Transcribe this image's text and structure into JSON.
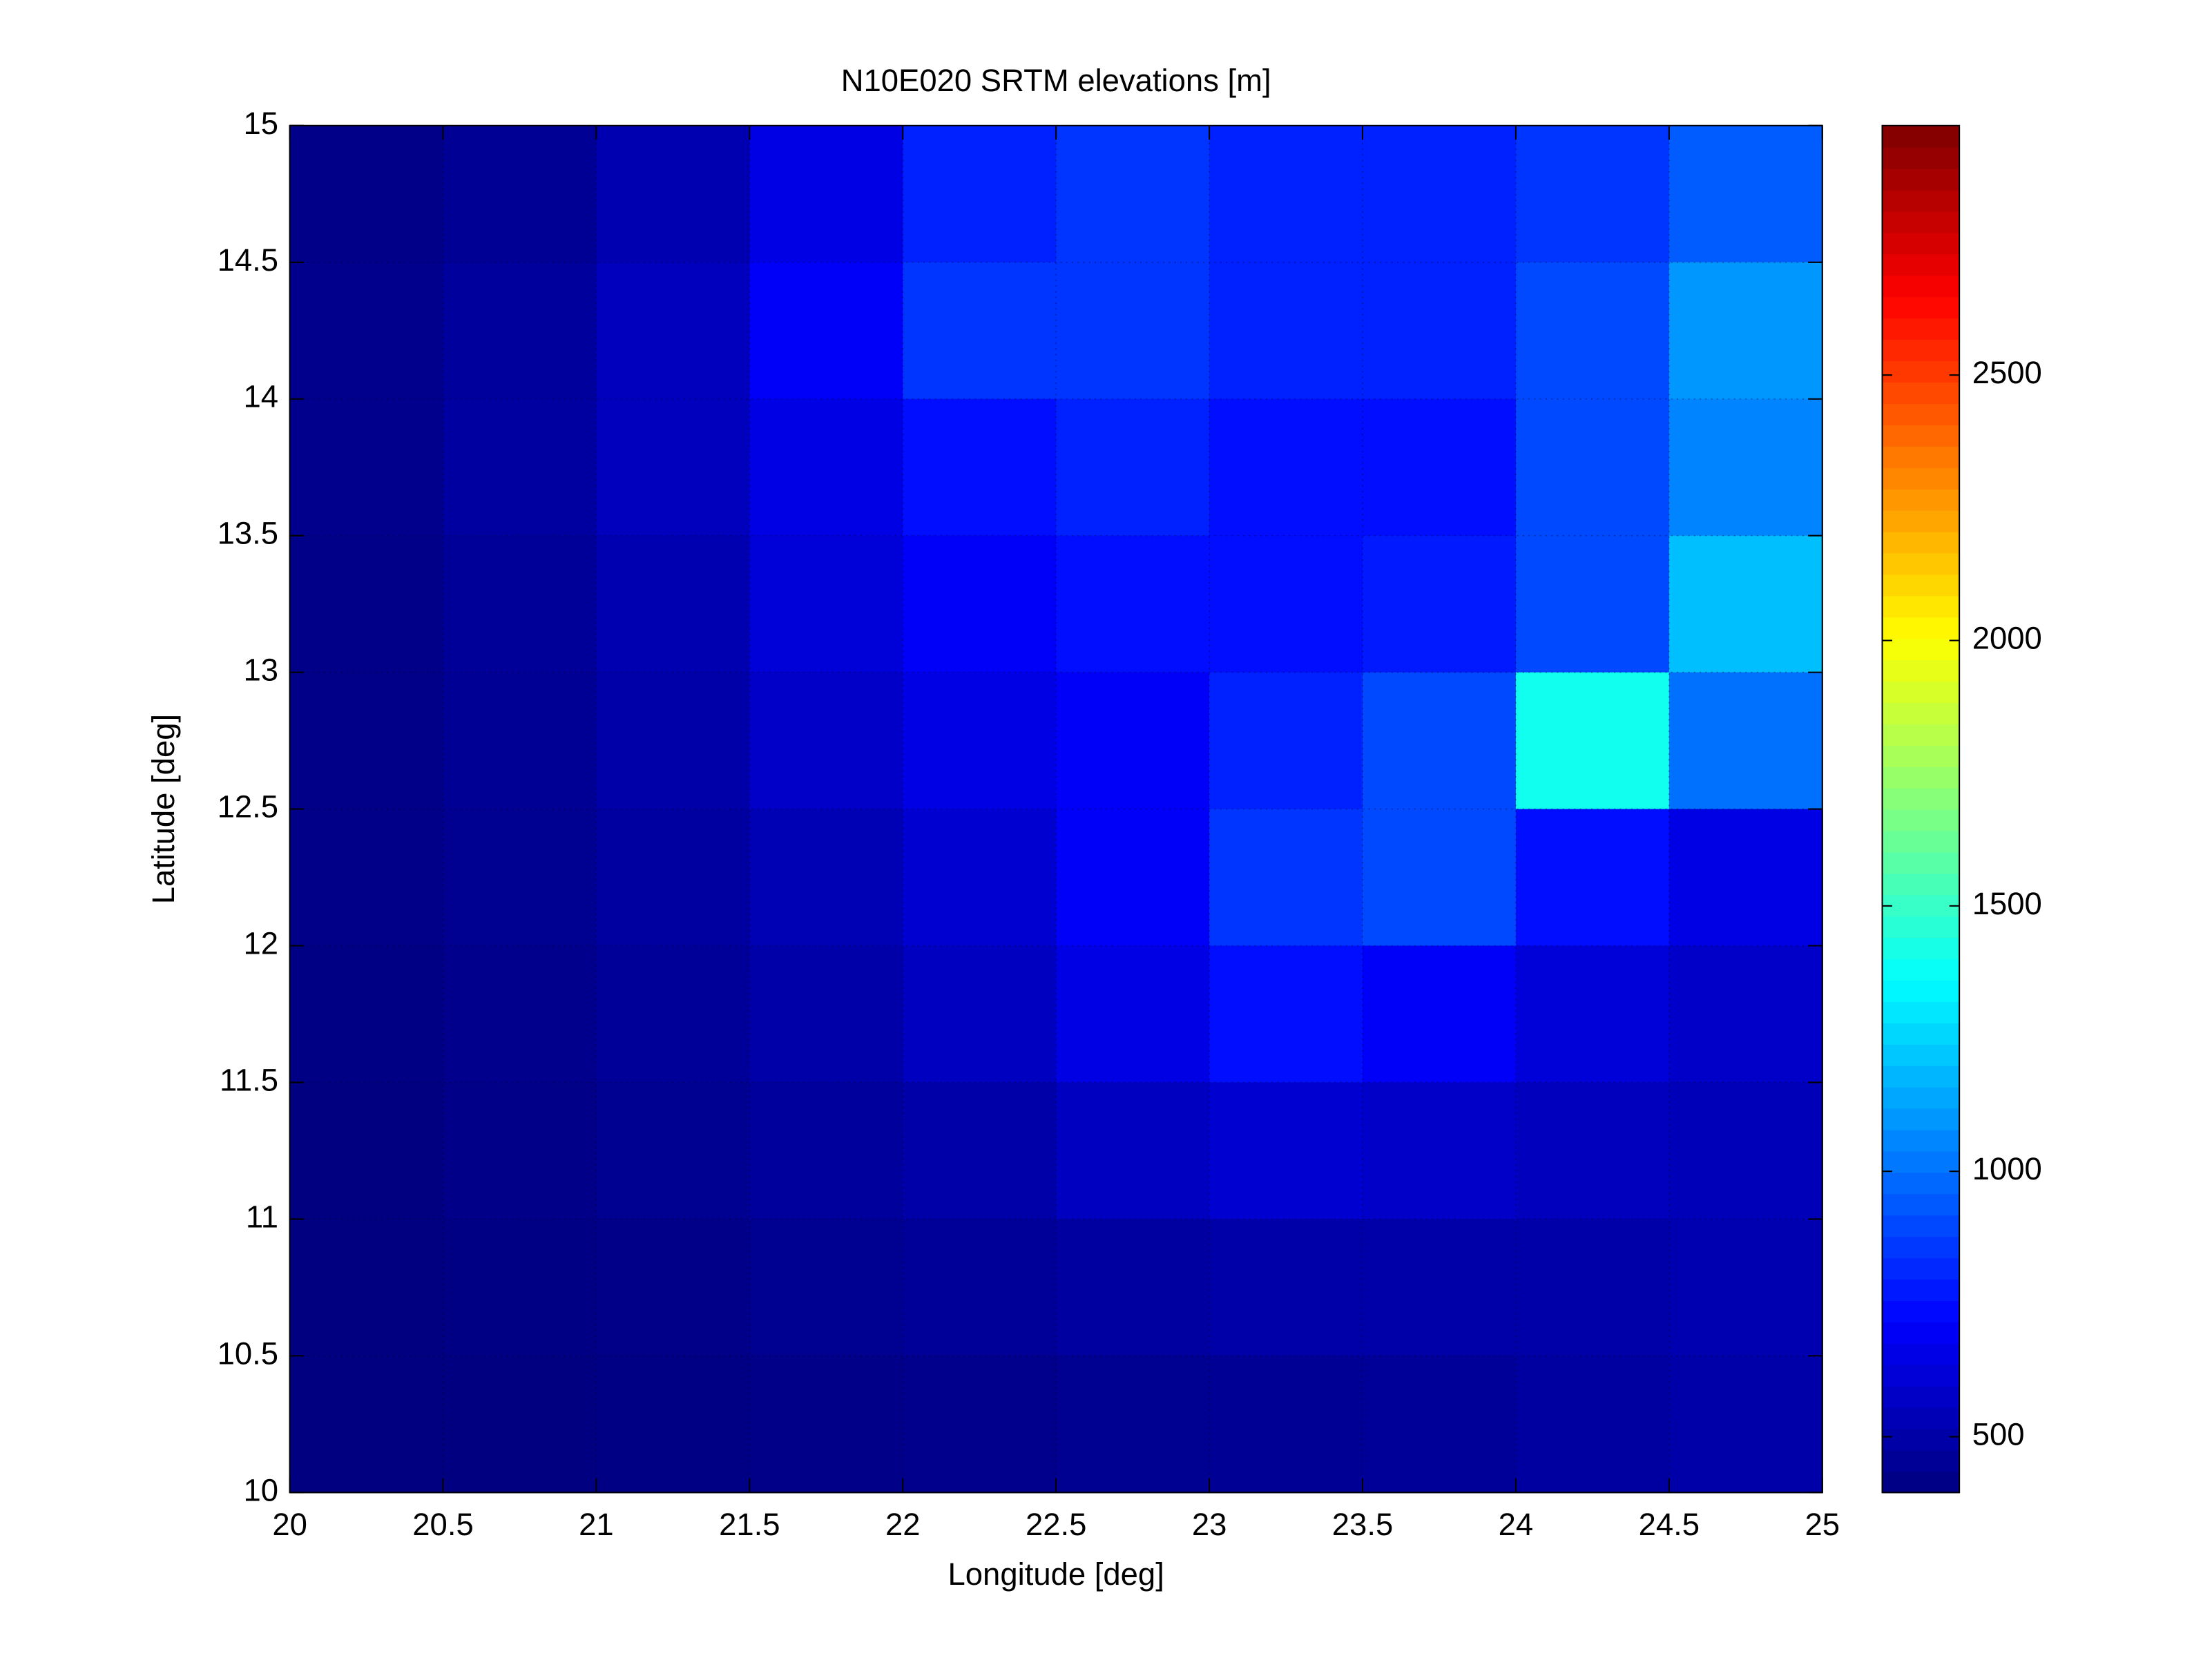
{
  "chart_data": {
    "type": "heatmap",
    "title": "N10E020 SRTM elevations [m]",
    "xlabel": "Longitude [deg]",
    "ylabel": "Latitude [deg]",
    "xlim": [
      20,
      25
    ],
    "ylim": [
      10,
      15
    ],
    "xticks": [
      20,
      20.5,
      21,
      21.5,
      22,
      22.5,
      23,
      23.5,
      24,
      24.5,
      25
    ],
    "yticks": [
      10,
      10.5,
      11,
      11.5,
      12,
      12.5,
      13,
      13.5,
      14,
      14.5,
      15
    ],
    "grid": true,
    "colormap": "jet",
    "clim": [
      395,
      2970
    ],
    "cticks": [
      500,
      1000,
      1500,
      2000,
      2500
    ],
    "values": [
      [
        420,
        450,
        520,
        650,
        800,
        850,
        800,
        800,
        850,
        950
      ],
      [
        430,
        470,
        550,
        700,
        850,
        850,
        800,
        800,
        900,
        1100
      ],
      [
        430,
        480,
        550,
        650,
        750,
        800,
        750,
        750,
        900,
        1050
      ],
      [
        420,
        460,
        520,
        620,
        700,
        750,
        750,
        780,
        900,
        1200
      ],
      [
        420,
        450,
        500,
        580,
        650,
        700,
        800,
        900,
        1400,
        1000
      ],
      [
        420,
        440,
        480,
        530,
        600,
        700,
        850,
        900,
        750,
        650
      ],
      [
        410,
        430,
        460,
        500,
        560,
        650,
        750,
        700,
        620,
        580
      ],
      [
        400,
        420,
        440,
        470,
        500,
        560,
        600,
        580,
        550,
        540
      ],
      [
        400,
        410,
        420,
        440,
        460,
        480,
        500,
        500,
        500,
        520
      ],
      [
        400,
        400,
        410,
        420,
        430,
        440,
        450,
        460,
        480,
        500
      ]
    ]
  }
}
